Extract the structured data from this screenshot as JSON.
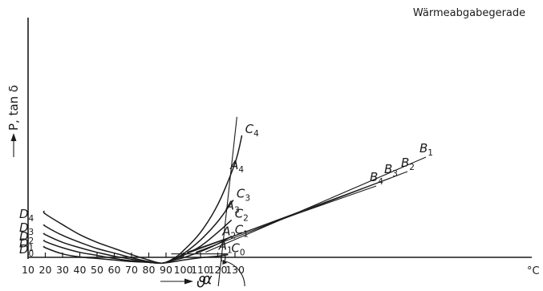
{
  "chart_data": {
    "type": "line",
    "title": "",
    "xlabel": "ϑ",
    "ylabel": "P, tan δ",
    "x_unit": "°C",
    "xlim": [
      10,
      137
    ],
    "xticks": [
      10,
      20,
      30,
      40,
      50,
      60,
      70,
      80,
      90,
      100,
      110,
      120,
      130
    ],
    "grid": false,
    "legend": "none",
    "series": [
      {
        "name": "D0 C0",
        "start_label": "D0",
        "end_label": "C0",
        "start_sub": "0",
        "end_sub": "0",
        "start_letter": "D",
        "end_letter": "C",
        "points": [
          [
            19.3,
            0.48
          ],
          [
            20,
            0.5
          ],
          [
            30,
            0.58
          ],
          [
            40,
            0.62
          ],
          [
            50,
            0.64
          ],
          [
            60,
            0.66
          ],
          [
            70,
            0.68
          ],
          [
            80,
            0.69
          ],
          [
            88,
            0.7
          ],
          [
            95,
            0.68
          ],
          [
            100,
            0.66
          ],
          [
            110,
            0.63
          ],
          [
            120,
            0.61
          ],
          [
            126,
            0.59
          ]
        ]
      },
      {
        "name": "D1 C1",
        "start_label": "D1",
        "end_label": "C1",
        "start_sub": "1",
        "end_sub": "1",
        "start_letter": "D",
        "end_letter": "C",
        "points": [
          [
            19.3,
            0.4
          ],
          [
            20,
            0.42
          ],
          [
            30,
            0.5
          ],
          [
            40,
            0.56
          ],
          [
            50,
            0.6
          ],
          [
            60,
            0.64
          ],
          [
            70,
            0.67
          ],
          [
            80,
            0.69
          ],
          [
            88,
            0.7
          ],
          [
            95,
            0.66
          ],
          [
            100,
            0.63
          ],
          [
            110,
            0.55
          ],
          [
            120,
            0.45
          ],
          [
            128,
            0.35
          ]
        ]
      },
      {
        "name": "D2 C2",
        "start_label": "D2",
        "end_label": "C2",
        "start_sub": "2",
        "end_sub": "2",
        "start_letter": "D",
        "end_letter": "C",
        "points": [
          [
            19.3,
            0.31
          ],
          [
            20,
            0.33
          ],
          [
            30,
            0.43
          ],
          [
            40,
            0.5
          ],
          [
            50,
            0.56
          ],
          [
            60,
            0.61
          ],
          [
            70,
            0.65
          ],
          [
            80,
            0.69
          ],
          [
            88,
            0.7
          ],
          [
            95,
            0.65
          ],
          [
            100,
            0.6
          ],
          [
            110,
            0.48
          ],
          [
            120,
            0.3
          ],
          [
            128,
            0.14
          ]
        ]
      },
      {
        "name": "D3 C3",
        "start_label": "D3",
        "end_label": "C3",
        "start_sub": "3",
        "end_sub": "3",
        "start_letter": "D",
        "end_letter": "C",
        "points": [
          [
            19.3,
            0.2
          ],
          [
            20,
            0.22
          ],
          [
            30,
            0.34
          ],
          [
            40,
            0.43
          ],
          [
            50,
            0.51
          ],
          [
            60,
            0.57
          ],
          [
            70,
            0.63
          ],
          [
            80,
            0.68
          ],
          [
            88,
            0.7
          ],
          [
            95,
            0.64
          ],
          [
            100,
            0.58
          ],
          [
            110,
            0.4
          ],
          [
            120,
            0.16
          ],
          [
            129,
            -0.12
          ]
        ]
      },
      {
        "name": "D4 C4",
        "start_label": "D4",
        "end_label": "C4",
        "start_sub": "4",
        "end_sub": "4",
        "start_letter": "D",
        "end_letter": "C",
        "points": [
          [
            19.3,
            0.02
          ],
          [
            20,
            0.06
          ],
          [
            30,
            0.2
          ],
          [
            40,
            0.33
          ],
          [
            50,
            0.43
          ],
          [
            60,
            0.51
          ],
          [
            70,
            0.59
          ],
          [
            80,
            0.66
          ],
          [
            88,
            0.7
          ],
          [
            95,
            0.63
          ],
          [
            100,
            0.54
          ],
          [
            110,
            0.3
          ],
          [
            120,
            -0.06
          ],
          [
            130,
            -0.6
          ],
          [
            134,
            -0.96
          ]
        ]
      }
    ],
    "heat_line": {
      "label": "Wärmeabgabegerade",
      "from": [
        120.3,
        1.0
      ],
      "to": [
        131.1,
        -1.2
      ],
      "angle_label": "α",
      "origin_label": "0"
    },
    "horizontal_line": {
      "y": 0.58,
      "from_x": 93,
      "to_x": 126
    },
    "points_A": [
      {
        "letter": "A",
        "sub": "1",
        "x": 121.5,
        "y": 0.59
      },
      {
        "letter": "A",
        "sub": "2",
        "x": 123.6,
        "y": 0.4
      },
      {
        "letter": "A",
        "sub": "3",
        "x": 125.7,
        "y": 0.07
      },
      {
        "letter": "A",
        "sub": "4",
        "x": 128.2,
        "y": -0.46
      }
    ],
    "points_B": [
      {
        "letter": "B",
        "sub": "1",
        "x": 112.9,
        "y": 0.58
      },
      {
        "letter": "B",
        "sub": "2",
        "x": 107.3,
        "y": 0.58
      },
      {
        "letter": "B",
        "sub": "3",
        "x": 104.0,
        "y": 0.58
      },
      {
        "letter": "B",
        "sub": "4",
        "x": 102.2,
        "y": 0.58
      }
    ]
  }
}
